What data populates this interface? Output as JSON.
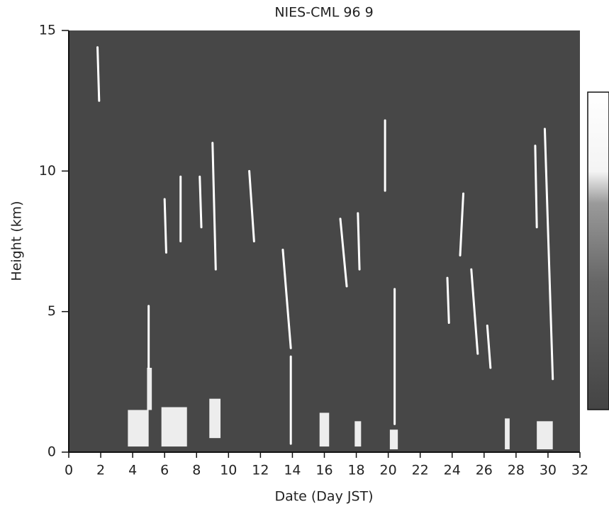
{
  "chart_data": {
    "type": "lidar",
    "title": "NIES-CML  96 9",
    "xlabel": "Date (Day JST)",
    "ylabel": "Height (km)",
    "xlim": [
      0,
      32
    ],
    "xticks": [
      0,
      2,
      4,
      6,
      8,
      10,
      12,
      14,
      16,
      18,
      20,
      22,
      24,
      26,
      28,
      30,
      32
    ],
    "ylim": [
      0,
      15
    ],
    "yticks": [
      0,
      5,
      10,
      15
    ],
    "background": "#474747",
    "color": "#ffffff",
    "streaks": [
      {
        "x": [
          1.8,
          1.9
        ],
        "y": [
          14.4,
          12.5
        ]
      },
      {
        "x": [
          5.0,
          5.0
        ],
        "y": [
          5.2,
          3.0
        ]
      },
      {
        "x": [
          6.0,
          6.1
        ],
        "y": [
          9.0,
          7.1
        ]
      },
      {
        "x": [
          7.0,
          7.0
        ],
        "y": [
          9.8,
          7.5
        ]
      },
      {
        "x": [
          8.2,
          8.3
        ],
        "y": [
          9.8,
          8.0
        ]
      },
      {
        "x": [
          9.0,
          9.2
        ],
        "y": [
          11,
          6.5
        ]
      },
      {
        "x": [
          11.3,
          11.6
        ],
        "y": [
          10,
          7.5
        ]
      },
      {
        "x": [
          13.4,
          13.9
        ],
        "y": [
          7.2,
          3.7
        ]
      },
      {
        "x": [
          13.9,
          13.9
        ],
        "y": [
          3.4,
          0.3
        ]
      },
      {
        "x": [
          17.0,
          17.4
        ],
        "y": [
          8.3,
          5.9
        ]
      },
      {
        "x": [
          18.1,
          18.2
        ],
        "y": [
          8.5,
          6.5
        ]
      },
      {
        "x": [
          19.8,
          19.8
        ],
        "y": [
          11.8,
          9.3
        ]
      },
      {
        "x": [
          20.4,
          20.4
        ],
        "y": [
          5.8,
          1.0
        ]
      },
      {
        "x": [
          23.7,
          23.8
        ],
        "y": [
          6.2,
          4.6
        ]
      },
      {
        "x": [
          24.7,
          24.5
        ],
        "y": [
          9.2,
          7.0
        ]
      },
      {
        "x": [
          25.2,
          25.6
        ],
        "y": [
          6.5,
          3.5
        ]
      },
      {
        "x": [
          26.2,
          26.4
        ],
        "y": [
          4.5,
          3.0
        ]
      },
      {
        "x": [
          29.2,
          29.3
        ],
        "y": [
          10.9,
          8.0
        ]
      },
      {
        "x": [
          29.8,
          30.3
        ],
        "y": [
          11.5,
          2.6
        ]
      }
    ],
    "patches": [
      {
        "x": [
          3.7,
          5.0
        ],
        "y": [
          0.2,
          1.5
        ]
      },
      {
        "x": [
          4.9,
          5.2
        ],
        "y": [
          1.5,
          3.0
        ]
      },
      {
        "x": [
          5.8,
          7.4
        ],
        "y": [
          0.2,
          1.6
        ]
      },
      {
        "x": [
          8.8,
          9.5
        ],
        "y": [
          0.5,
          1.9
        ]
      },
      {
        "x": [
          15.7,
          16.3
        ],
        "y": [
          0.2,
          1.4
        ]
      },
      {
        "x": [
          17.9,
          18.3
        ],
        "y": [
          0.2,
          1.1
        ]
      },
      {
        "x": [
          20.1,
          20.6
        ],
        "y": [
          0.1,
          0.8
        ]
      },
      {
        "x": [
          27.3,
          27.6
        ],
        "y": [
          0.1,
          1.2
        ]
      },
      {
        "x": [
          29.3,
          30.3
        ],
        "y": [
          0.1,
          1.1
        ]
      }
    ]
  }
}
